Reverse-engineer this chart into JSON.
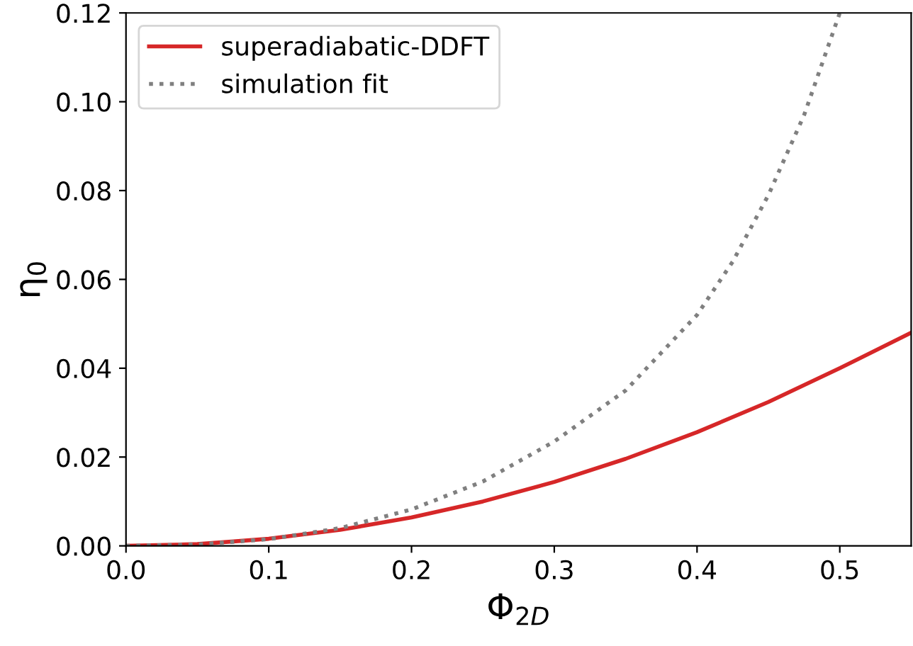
{
  "chart_data": {
    "type": "line",
    "xlabel": "Φ$_{2D}$",
    "ylabel": "η$_{0}$",
    "xlim": [
      0.0,
      0.55
    ],
    "ylim": [
      0.0,
      0.12
    ],
    "xticks": [
      {
        "value": 0.0,
        "label": "0.0"
      },
      {
        "value": 0.1,
        "label": "0.1"
      },
      {
        "value": 0.2,
        "label": "0.2"
      },
      {
        "value": 0.3,
        "label": "0.3"
      },
      {
        "value": 0.4,
        "label": "0.4"
      },
      {
        "value": 0.5,
        "label": "0.5"
      }
    ],
    "yticks": [
      {
        "value": 0.0,
        "label": "0.00"
      },
      {
        "value": 0.02,
        "label": "0.02"
      },
      {
        "value": 0.04,
        "label": "0.04"
      },
      {
        "value": 0.06,
        "label": "0.06"
      },
      {
        "value": 0.08,
        "label": "0.08"
      },
      {
        "value": 0.1,
        "label": "0.10"
      },
      {
        "value": 0.12,
        "label": "0.12"
      }
    ],
    "grid": false,
    "legend": "top left",
    "series": [
      {
        "name": "superadiabatic-DDFT",
        "color": "#d62728",
        "line_style": "solid",
        "x": [
          0.0,
          0.05,
          0.1,
          0.15,
          0.2,
          0.25,
          0.3,
          0.35,
          0.4,
          0.45,
          0.5,
          0.55
        ],
        "values": [
          0.0,
          0.0004,
          0.0016,
          0.0036,
          0.0064,
          0.01,
          0.0144,
          0.0196,
          0.0256,
          0.0324,
          0.04,
          0.048
        ]
      },
      {
        "name": "simulation fit",
        "color": "#808080",
        "line_style": "dotted",
        "x": [
          0.0,
          0.05,
          0.1,
          0.15,
          0.2,
          0.25,
          0.3,
          0.35,
          0.4,
          0.425,
          0.45,
          0.475,
          0.5
        ],
        "values": [
          0.0,
          0.0003,
          0.0015,
          0.004,
          0.0082,
          0.0145,
          0.0235,
          0.035,
          0.052,
          0.064,
          0.079,
          0.097,
          0.12
        ]
      }
    ]
  }
}
